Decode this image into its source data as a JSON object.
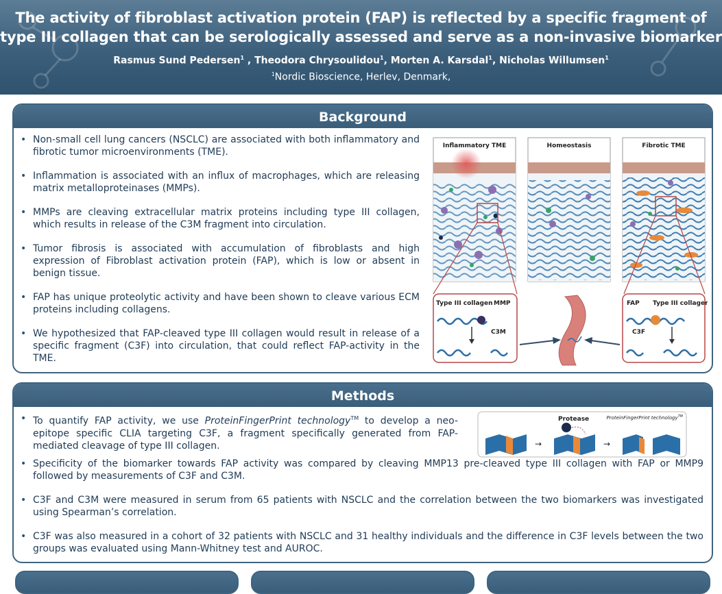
{
  "header": {
    "title_line1": "The activity of fibroblast activation protein (FAP) is reflected by a specific fragment of",
    "title_line2": "type III collagen that can be serologically assessed and serve as a non-invasive biomarker",
    "authors": [
      {
        "name": "Rasmus Sund Pedersen",
        "sup": "1",
        "sep": " , "
      },
      {
        "name": "Theodora Chrysoulidou",
        "sup": "1",
        "sep": ", "
      },
      {
        "name": "Morten A. Karsdal",
        "sup": "1",
        "sep": ", "
      },
      {
        "name": "Nicholas Willumsen",
        "sup": "1",
        "sep": ""
      }
    ],
    "affiliation_sup": "1",
    "affiliation": "Nordic Bioscience, Herlev, Denmark,"
  },
  "background": {
    "heading": "Background",
    "bullets": [
      "Non-small cell lung cancers (NSCLC) are associated with both inflammatory and fibrotic tumor microenvironments (TME).",
      "Inflammation is associated with an influx of macrophages, which are releasing matrix metalloproteinases (MMPs).",
      "MMPs are cleaving extracellular matrix proteins including type III collagen, which results in release of the C3M fragment into circulation.",
      "Tumor fibrosis is associated with accumulation of fibroblasts and high expression of Fibroblast activation protein (FAP), which is low or absent in benign tissue.",
      "FAP has unique proteolytic activity and have been shown to cleave various ECM proteins including collagens.",
      "We hypothesized that FAP-cleaved type III collagen would result in release of a specific fragment (C3F) into circulation, that could reflect FAP-activity in the TME."
    ],
    "figure": {
      "panels": [
        "Inflammatory TME",
        "Homeostasis",
        "Fibrotic TME"
      ],
      "left_box": {
        "collagen_label": "Type III collagen",
        "enzyme_label": "MMP",
        "fragment_label": "C3M"
      },
      "right_box": {
        "enzyme_label": "FAP",
        "collagen_label": "Type III collagen",
        "fragment_label": "C3F"
      },
      "colors": {
        "collagen": "#2b6fa8",
        "inflammation": "#e35a5a",
        "fibroblast": "#e8893a",
        "box_border": "#b84545",
        "vessel": "#d9807a"
      }
    }
  },
  "methods": {
    "heading": "Methods",
    "bullet1": {
      "before": "To quantify FAP activity, we use ",
      "italic": "ProteinFingerPrint technology",
      "tm": "TM",
      "after": " to develop a neo-epitope specific CLIA targeting C3F, a fragment specifically generated from FAP-mediated cleavage of type III collagen."
    },
    "bullets": [
      "Specificity of the biomarker towards FAP activity was compared by cleaving MMP13 pre-cleaved type III collagen with FAP or MMP9 followed by measurements of C3F and C3M.",
      "C3F and C3M were measured in serum from 65 patients with NSCLC and the correlation between the two biomarkers was investigated using Spearman’s correlation.",
      "C3F was also measured in a cohort of 32 patients with NSCLC and 31 healthy individuals and the difference in C3F levels between the two groups was evaluated using Mann-Whitney test and AUROC."
    ],
    "figure": {
      "protease_label": "Protease",
      "tech_label": "ProteinFingerPrint technology",
      "tech_tm": "TM"
    }
  }
}
